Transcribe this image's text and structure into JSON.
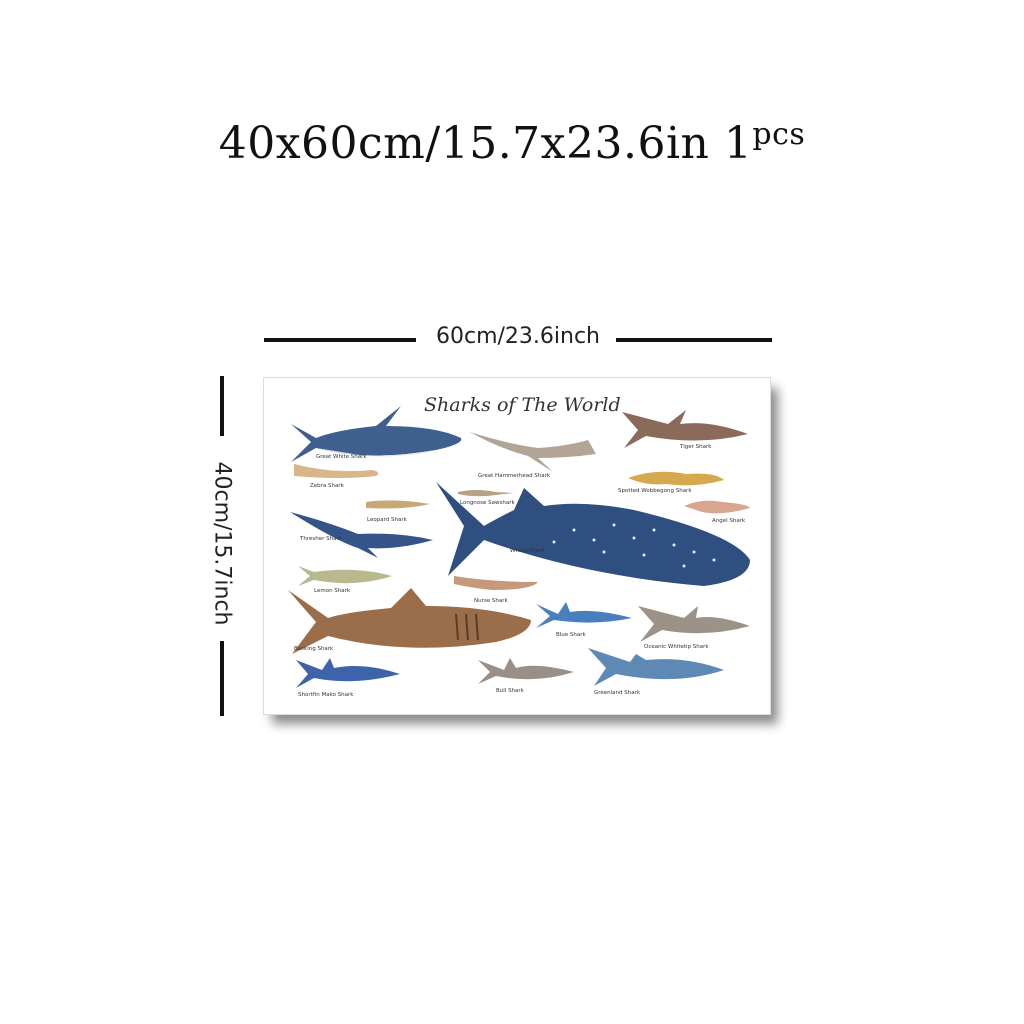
{
  "headline": {
    "size": "40x60cm/15.7x23.6in",
    "qty": "1",
    "unit": "pcs"
  },
  "width_label": "60cm/23.6inch",
  "height_label": "40cm/15.7inch",
  "poster": {
    "title": "Sharks of The World",
    "sharks": [
      "Great White Shark",
      "Zebra Shark",
      "Leopard Shark",
      "Thresher Shark",
      "Lemon Shark",
      "Basking Shark",
      "Shortfin Mako Shark",
      "Great Hammerhead Shark",
      "Longnose Sawshark",
      "Whale Shark",
      "Nurse Shark",
      "Blue Shark",
      "Bull Shark",
      "Tiger Shark",
      "Spotted Wobbegong Shark",
      "Angel Shark",
      "Oceanic Whitetip Shark",
      "Greenland Shark"
    ]
  },
  "colors": {
    "border": "#111111",
    "text": "#222222"
  }
}
